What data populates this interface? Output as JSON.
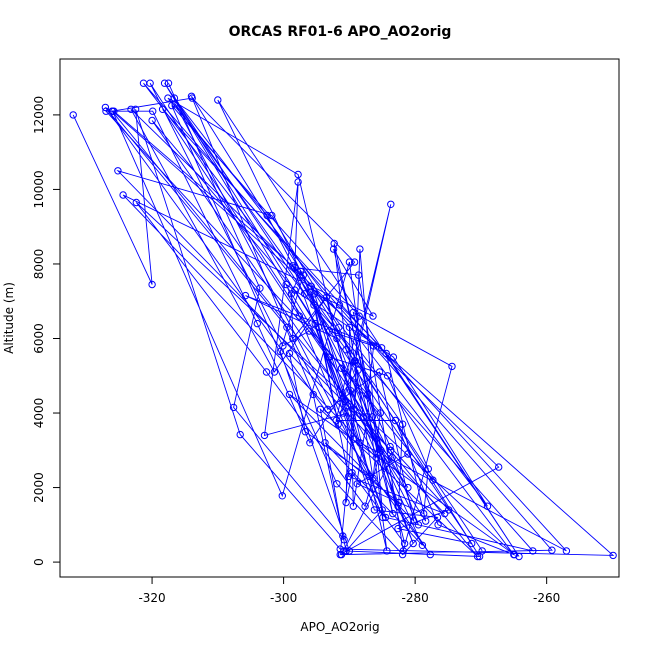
{
  "chart_data": {
    "type": "line",
    "title": "ORCAS RF01-6 APO_AO2orig",
    "xlabel": "APO_AO2orig",
    "ylabel": "Altitude (m)",
    "xlim": [
      -334,
      -249
    ],
    "ylim": [
      -400,
      13500
    ],
    "x_ticks": [
      -320,
      -300,
      -280,
      -260
    ],
    "y_ticks": [
      0,
      2000,
      4000,
      6000,
      8000,
      10000,
      12000
    ],
    "x_tick_labels": [
      "-320",
      "-300",
      "-280",
      "-260"
    ],
    "y_tick_labels": [
      "0",
      "2000",
      "4000",
      "6000",
      "8000",
      "10000",
      "12000"
    ],
    "marker": "open-circle",
    "grid": false,
    "legend": "none",
    "colors": {
      "series": "#0000ff",
      "axes": "#000000",
      "background": "#ffffff"
    },
    "series": [
      {
        "x": [
          -332.0,
          -320.0,
          -322.5,
          -306.6,
          -291.4,
          -249.9,
          -326.0,
          -300.2,
          -290.0,
          -284.3,
          -297.8,
          -317.6,
          -302.5,
          -283.5,
          -291.2,
          -259.2,
          -321.3,
          -296.8,
          -289.2,
          -283.4,
          -286.5,
          -292.3,
          -290.5,
          -282.6,
          -277.7,
          -327.1,
          -299.5,
          -293.3,
          -285.4,
          -280.2,
          -299.1,
          -264.9,
          -322.4,
          -302.6,
          -287.6,
          -285.2,
          -289.4,
          -274.4,
          -281.8,
          -288.6,
          -298.3,
          -297.8,
          -302.9,
          -290.2,
          -290.5,
          -289.6,
          -281.6,
          -292.4,
          -286.4,
          -324.4,
          -285.9,
          -290.6,
          -293.2,
          -284.5,
          -262.1,
          -295.4,
          -290.1,
          -275.5,
          -299.1,
          -296.7,
          -287.0,
          -316.5,
          -281.9,
          -282.5,
          -293.7,
          -278.9,
          -291.2,
          -277.3
        ],
        "y": [
          12000,
          7450,
          12150,
          3420,
          350,
          180,
          12100,
          1780,
          8050,
          300,
          10400,
          12450,
          9300,
          2800,
          200,
          320,
          12850,
          7200,
          5400,
          1300,
          3900,
          8550,
          5700,
          1500,
          200,
          12200,
          6300,
          4100,
          5100,
          1100,
          4500,
          200,
          9650,
          5100,
          1500,
          3000,
          6700,
          5250,
          300,
          7700,
          7900,
          10200,
          3400,
          4000,
          1600,
          2400,
          500,
          8400,
          6600,
          9850,
          2800,
          4300,
          5500,
          1200,
          300,
          6900,
          2300,
          1300,
          5600,
          3500,
          2300,
          12300,
          3700,
          1600,
          3200,
          450,
          5200,
          2200
        ]
      },
      {
        "x": [
          -325.8,
          -297.0,
          -300.5,
          -290.0,
          -290.8,
          -270.2,
          -314.0,
          -295.5,
          -290.5,
          -285.0,
          -298.6,
          -293.0,
          -286.3,
          -287.2,
          -327.0,
          -319.9,
          -304.0,
          -296.0,
          -288.7,
          -291.4,
          -267.3,
          -323.2,
          -301.4,
          -293.5,
          -289.3,
          -278.4,
          -284.4,
          -264.2,
          -310.0,
          -295.9,
          -290.3,
          -287.9,
          -281.1,
          -320.0,
          -298.3,
          -294.7,
          -289.4,
          -288.4,
          -284.9,
          -299.6,
          -283.3,
          -269.0,
          -316.6,
          -295.2,
          -290.9,
          -286.2,
          -276.6,
          -281.9,
          -291.9,
          -317.0,
          -288.5,
          -292.0,
          -283.0,
          -276.5,
          -265.0,
          -295.8,
          -291.7,
          -283.7,
          -289.1,
          -269.8
        ],
        "y": [
          12100,
          7700,
          5650,
          300,
          300,
          150,
          12500,
          4500,
          300,
          1400,
          7950,
          6200,
          5800,
          4500,
          12100,
          12100,
          6400,
          3200,
          5150,
          200,
          2550,
          12150,
          5100,
          7100,
          4100,
          1100,
          5600,
          150,
          12400,
          7250,
          4200,
          3900,
          2000,
          11850,
          7300,
          6300,
          3300,
          8400,
          1200,
          7450,
          5500,
          1500,
          12450,
          6400,
          4000,
          1400,
          1200,
          200,
          2100,
          12250,
          6600,
          3800,
          3800,
          1000,
          200,
          7400,
          3700,
          9600,
          5400,
          300
        ]
      },
      {
        "x": [
          -317.5,
          -303.6,
          -307.6,
          -290.8,
          -291.0,
          -294.4,
          -270.5,
          -326.1,
          -313.9,
          -289.2,
          -298.6,
          -298.8,
          -297.4,
          -280.3,
          -291.9,
          -305.8,
          -285.1,
          -291.5,
          -295.3,
          -288.4,
          -257.0,
          -318.4,
          -297.6,
          -285.3,
          -286.4,
          -290.0,
          -289.4,
          -287.3,
          -320.3,
          -300.1,
          -296.1,
          -289.8,
          -279.5,
          -283.7,
          -325.2,
          -301.8,
          -291.6,
          -283.8,
          -274.9,
          -282.6,
          -271.4,
          -318.1,
          -293.0,
          -284.2,
          -278.0,
          -278.7,
          -288.8,
          -281.1
        ],
        "y": [
          12850,
          7350,
          4150,
          600,
          700,
          4100,
          150,
          12100,
          12450,
          8050,
          6000,
          7200,
          7800,
          500,
          6000,
          7150,
          5750,
          6900,
          7200,
          3200,
          300,
          12150,
          6600,
          4000,
          2250,
          6300,
          1500,
          3900,
          12850,
          5800,
          6200,
          4600,
          1000,
          3000,
          10500,
          9300,
          6300,
          3100,
          1400,
          900,
          500,
          12850,
          5500,
          5000,
          2500,
          1300,
          2100,
          2900
        ]
      }
    ]
  }
}
